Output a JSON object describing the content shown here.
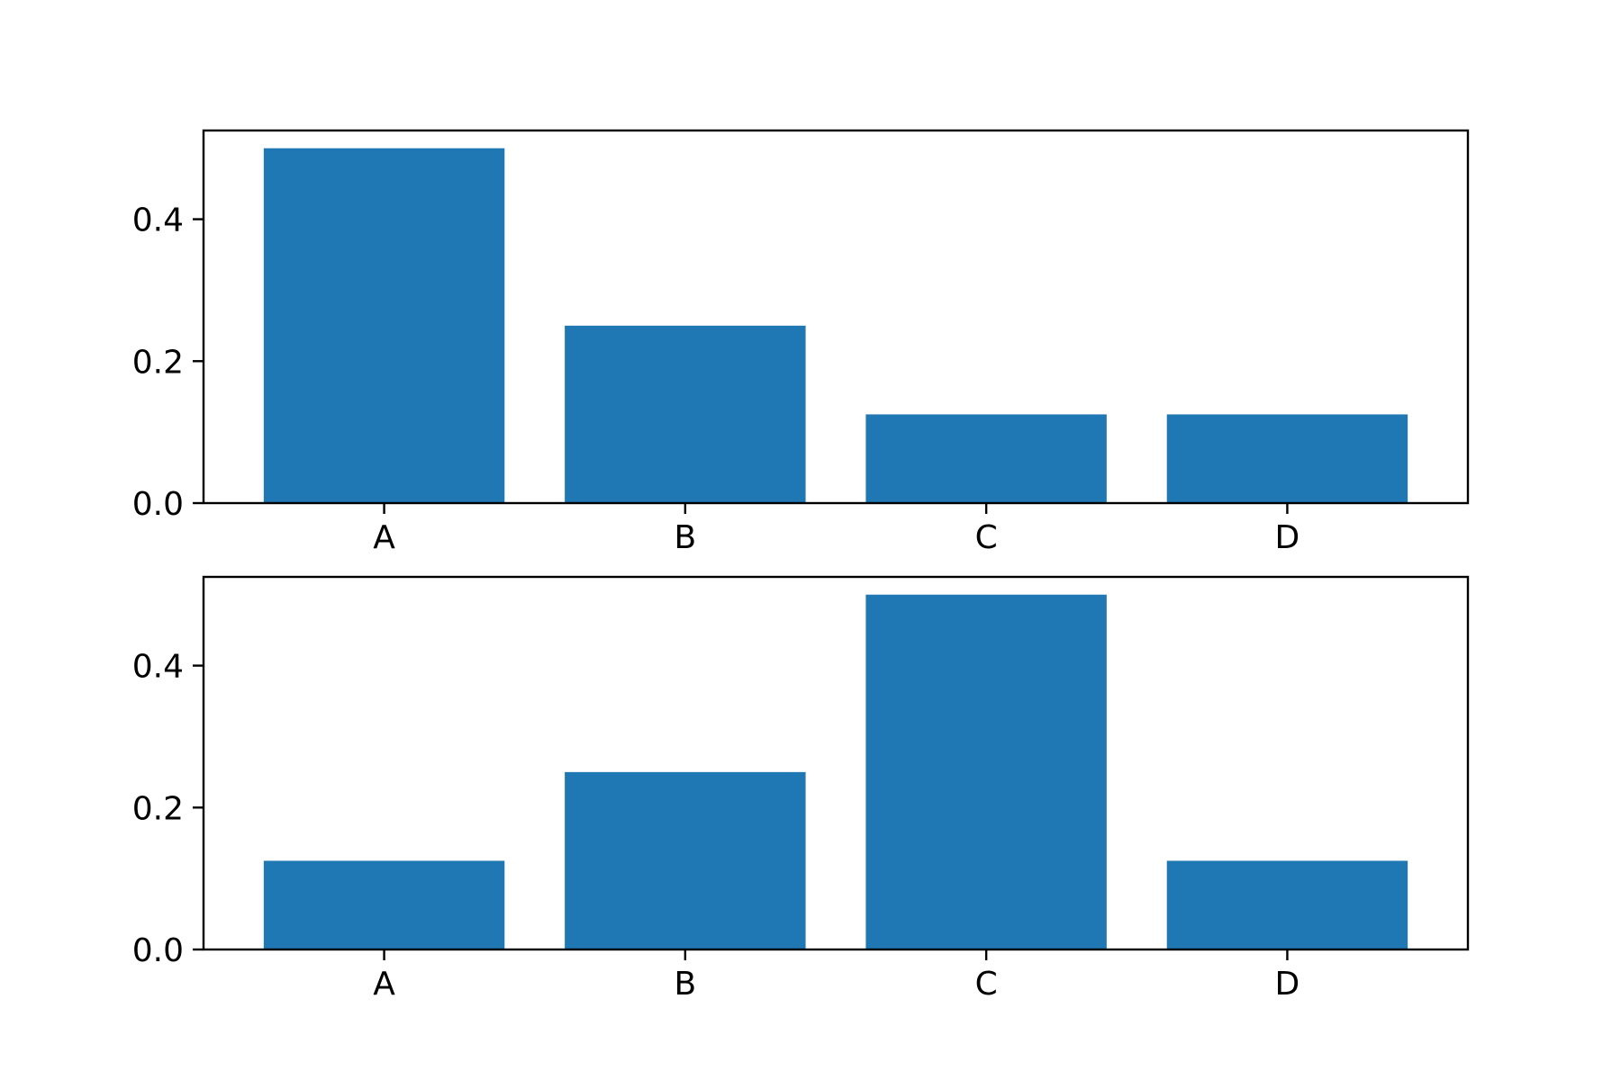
{
  "chart_data": [
    {
      "type": "bar",
      "title": "",
      "xlabel": "",
      "ylabel": "",
      "categories": [
        "A",
        "B",
        "C",
        "D"
      ],
      "values": [
        0.5,
        0.25,
        0.125,
        0.125
      ],
      "ylim": [
        0,
        0.525
      ],
      "yticks": [
        "0.0",
        "0.2",
        "0.4"
      ],
      "bar_color": "#1f77b4",
      "grid": false,
      "legend": "none"
    },
    {
      "type": "bar",
      "title": "",
      "xlabel": "",
      "ylabel": "",
      "categories": [
        "A",
        "B",
        "C",
        "D"
      ],
      "values": [
        0.125,
        0.25,
        0.5,
        0.125
      ],
      "ylim": [
        0,
        0.525
      ],
      "yticks": [
        "0.0",
        "0.2",
        "0.4"
      ],
      "bar_color": "#1f77b4",
      "grid": false,
      "legend": "none"
    }
  ]
}
